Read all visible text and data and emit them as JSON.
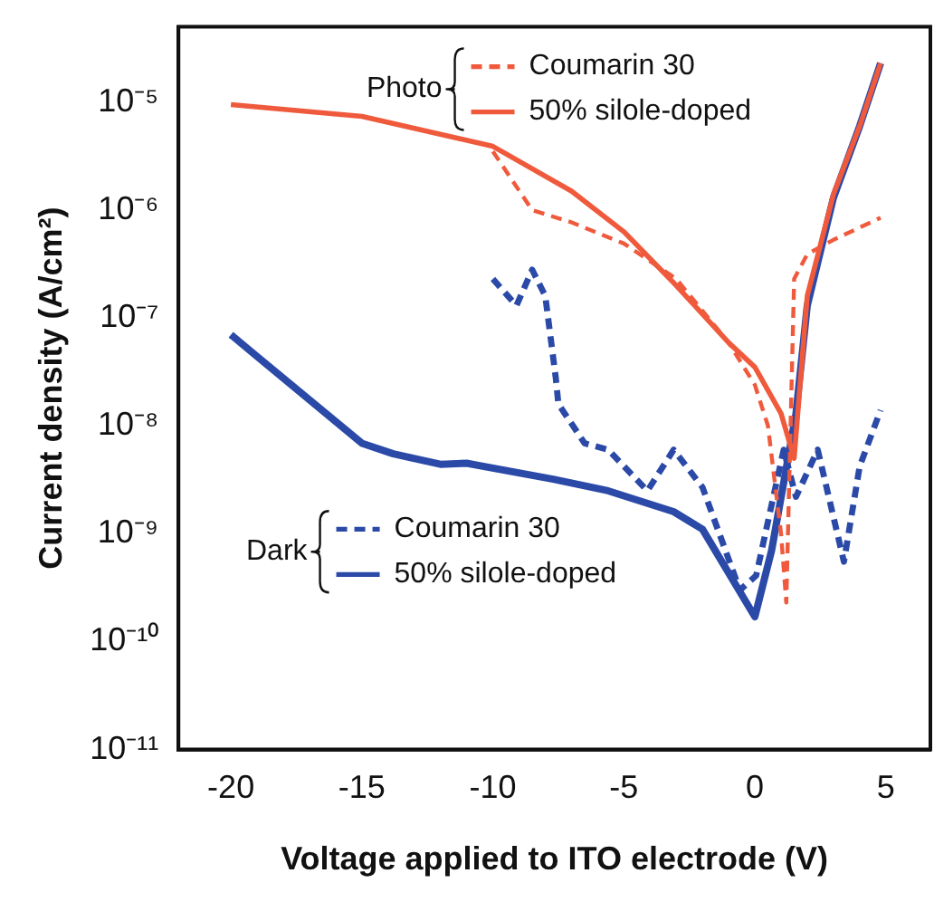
{
  "chart_data": {
    "type": "line",
    "xlabel": "Voltage applied to ITO electrode (V)",
    "ylabel": "Current density (A/cm²)",
    "log": "y",
    "xlim": [
      -22,
      6.7
    ],
    "xticks": [
      -20,
      -15,
      -10,
      -5,
      0,
      5
    ],
    "ylim": [
      1e-11,
      5e-05
    ],
    "yticks": [
      {
        "value": 1e-11,
        "label": "10⁻¹¹"
      },
      {
        "value": 1e-10,
        "label": "10⁻¹⁰"
      },
      {
        "value": 1e-09,
        "label": "10⁻⁹"
      },
      {
        "value": 1e-08,
        "label": "10⁻⁸"
      },
      {
        "value": 1e-07,
        "label": "10⁻⁷"
      },
      {
        "value": 1e-06,
        "label": "10⁻⁶"
      },
      {
        "value": 1e-05,
        "label": "10⁻⁵"
      }
    ],
    "grid": false,
    "legend": "top right",
    "marker": "none",
    "annotations": [
      "Photo",
      "Dark"
    ],
    "series": [
      {
        "name": "Coumarin 30",
        "color": "#f05a3c",
        "line_style": "dashed",
        "x": [
          -10,
          -8.5,
          -7,
          -5,
          -3,
          -1,
          0,
          0.5,
          1,
          1.2,
          1.5,
          2,
          3,
          4.8
        ],
        "values": [
          3.5e-06,
          1e-06,
          7.7e-07,
          4.9e-07,
          2.3e-07,
          5.9e-08,
          2.4e-08,
          1e-08,
          1e-09,
          2.3e-10,
          2.3e-07,
          3.9e-07,
          5.3e-07,
          8.5e-07
        ]
      },
      {
        "name": "50% silole-doped",
        "color": "#f05a3c",
        "line_style": "solid",
        "x": [
          -20,
          -15,
          -10,
          -7,
          -5,
          -3,
          -1,
          0,
          1,
          1.5,
          2,
          3,
          4,
          4.8
        ],
        "values": [
          9.5e-06,
          7.4e-06,
          3.9e-06,
          1.5e-06,
          6.3e-07,
          2e-07,
          5.9e-08,
          3.5e-08,
          1.3e-08,
          5e-09,
          1.6e-07,
          1.4e-06,
          6e-06,
          2.3e-05
        ]
      },
      {
        "name": "Coumarin 30",
        "color": "#2b4aa8",
        "line_style": "dashed",
        "x": [
          -10,
          -9.1,
          -8.5,
          -8,
          -7.6,
          -7.5,
          -6.5,
          -5.6,
          -4.1,
          -3.1,
          -2,
          -0.57,
          0.05,
          1.1,
          1.57,
          2.4,
          3.3,
          3.4,
          4,
          4.8
        ],
        "values": [
          2.3e-07,
          1.3e-07,
          2.8e-07,
          1.6e-07,
          2.8e-08,
          1.6e-08,
          6.9e-09,
          6e-09,
          2.5e-09,
          6e-09,
          2.7e-09,
          3e-10,
          4.1e-10,
          6e-09,
          2.2e-09,
          6e-09,
          7e-10,
          5.5e-10,
          4.2e-09,
          1.4e-08
        ]
      },
      {
        "name": "50% silole-doped",
        "color": "#2b4aa8",
        "line_style": "solid",
        "x": [
          -20,
          -19.1,
          -15,
          -13.8,
          -12,
          -11,
          -7.7,
          -5.6,
          -3.1,
          -2,
          0,
          0.64,
          1.57,
          2,
          3,
          4,
          4.8
        ],
        "values": [
          7e-08,
          4.6e-08,
          6.9e-09,
          5.5e-09,
          4.4e-09,
          4.5e-09,
          3.2e-09,
          2.5e-09,
          1.6e-09,
          1.1e-09,
          1.7e-10,
          7e-10,
          1.3e-08,
          1.3e-07,
          1.3e-06,
          6e-06,
          2.3e-05
        ]
      }
    ]
  }
}
